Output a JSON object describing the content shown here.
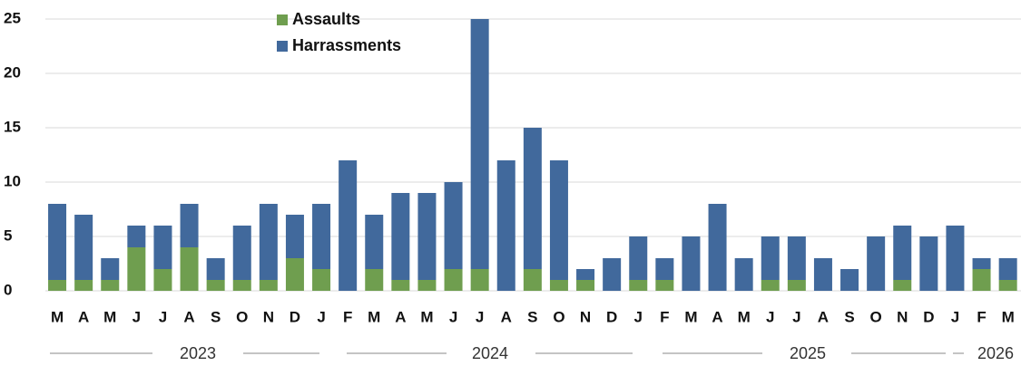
{
  "chart_data": {
    "type": "stacked_bar",
    "categories": [
      "M",
      "A",
      "M",
      "J",
      "J",
      "A",
      "S",
      "O",
      "N",
      "D",
      "J",
      "F",
      "M",
      "A",
      "M",
      "J",
      "J",
      "A",
      "S",
      "O",
      "N",
      "D",
      "J",
      "F",
      "M",
      "A",
      "M",
      "J",
      "J",
      "A",
      "S",
      "O",
      "N",
      "D",
      "J",
      "F",
      "M"
    ],
    "years": [
      "2023",
      "2024",
      "2025",
      "2026"
    ],
    "series": [
      {
        "name": "Assaults",
        "color": "#6f9e4f",
        "values": [
          1,
          1,
          1,
          4,
          2,
          4,
          1,
          1,
          1,
          3,
          2,
          0,
          2,
          1,
          1,
          2,
          2,
          0,
          2,
          1,
          1,
          0,
          1,
          1,
          0,
          0,
          0,
          1,
          1,
          0,
          0,
          0,
          1,
          0,
          0,
          2,
          1
        ]
      },
      {
        "name": "Harrassments",
        "color": "#41699c",
        "values": [
          7,
          6,
          2,
          2,
          4,
          4,
          2,
          5,
          7,
          4,
          6,
          12,
          5,
          8,
          8,
          8,
          23,
          12,
          13,
          11,
          1,
          3,
          4,
          2,
          5,
          8,
          3,
          4,
          4,
          3,
          2,
          5,
          5,
          5,
          6,
          1,
          2
        ]
      }
    ],
    "ylim": [
      0,
      25
    ],
    "yticks": [
      0,
      5,
      10,
      15,
      20,
      25
    ],
    "grid": true
  }
}
